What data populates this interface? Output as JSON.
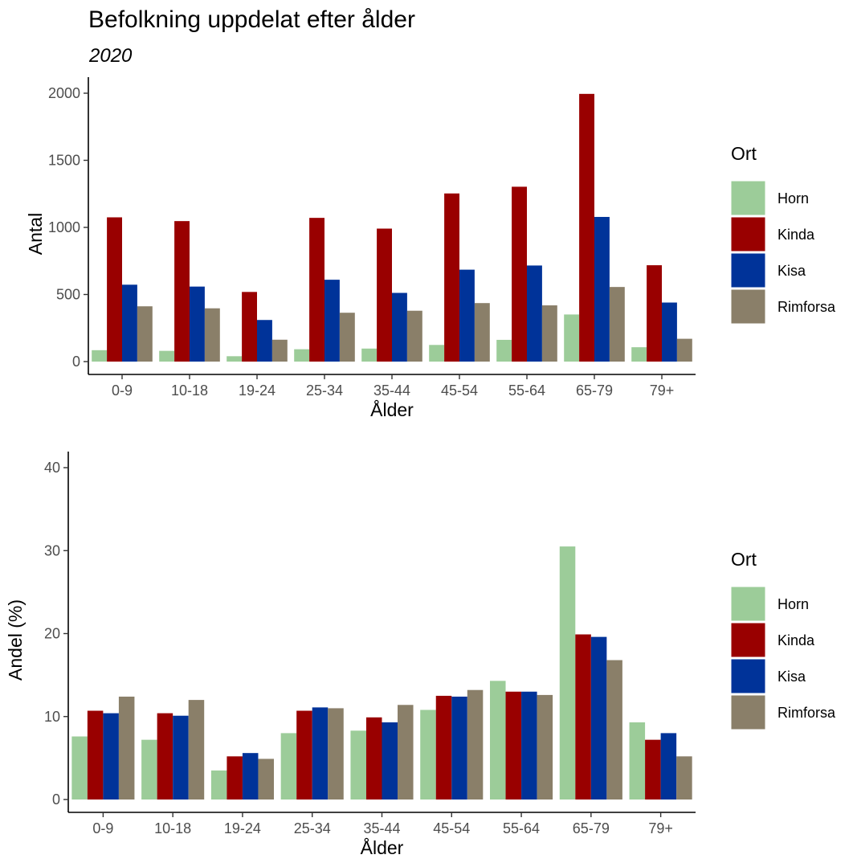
{
  "title": "Befolkning uppdelat efter ålder",
  "subtitle": "2020",
  "chart_data": [
    {
      "type": "bar",
      "xlabel": "Ålder",
      "ylabel": "Antal",
      "ylim": [
        0,
        2000
      ],
      "yticks": [
        0,
        500,
        1000,
        1500,
        2000
      ],
      "grid": false,
      "legend_title": "Ort",
      "legend_position": "right",
      "categories": [
        "0-9",
        "10-18",
        "19-24",
        "25-34",
        "35-44",
        "45-54",
        "55-64",
        "65-79",
        "79+"
      ],
      "series": [
        {
          "name": "Horn",
          "color": "#9ccc99",
          "values": [
            85,
            80,
            40,
            92,
            97,
            124,
            162,
            351,
            107
          ]
        },
        {
          "name": "Kinda",
          "color": "#990000",
          "values": [
            1075,
            1047,
            519,
            1071,
            991,
            1253,
            1303,
            1995,
            718
          ]
        },
        {
          "name": "Kisa",
          "color": "#003399",
          "values": [
            573,
            559,
            310,
            610,
            512,
            685,
            716,
            1078,
            440
          ]
        },
        {
          "name": "Rimforsa",
          "color": "#8a7f69",
          "values": [
            412,
            397,
            163,
            364,
            379,
            436,
            419,
            556,
            170
          ]
        }
      ]
    },
    {
      "type": "bar",
      "xlabel": "Ålder",
      "ylabel": "Andel (%)",
      "ylim": [
        0,
        40
      ],
      "yticks": [
        0,
        10,
        20,
        30,
        40
      ],
      "grid": false,
      "legend_title": "Ort",
      "legend_position": "right",
      "categories": [
        "0-9",
        "10-18",
        "19-24",
        "25-34",
        "35-44",
        "45-54",
        "55-64",
        "65-79",
        "79+"
      ],
      "series": [
        {
          "name": "Horn",
          "color": "#9ccc99",
          "values": [
            7.6,
            7.2,
            3.5,
            8.0,
            8.3,
            10.8,
            14.3,
            30.5,
            9.3
          ]
        },
        {
          "name": "Kinda",
          "color": "#990000",
          "values": [
            10.7,
            10.4,
            5.2,
            10.7,
            9.9,
            12.5,
            13.0,
            19.9,
            7.2
          ]
        },
        {
          "name": "Kisa",
          "color": "#003399",
          "values": [
            10.4,
            10.1,
            5.6,
            11.1,
            9.3,
            12.4,
            13.0,
            19.6,
            8.0
          ]
        },
        {
          "name": "Rimforsa",
          "color": "#8a7f69",
          "values": [
            12.4,
            12.0,
            4.9,
            11.0,
            11.4,
            13.2,
            12.6,
            16.8,
            5.2
          ]
        }
      ]
    }
  ]
}
